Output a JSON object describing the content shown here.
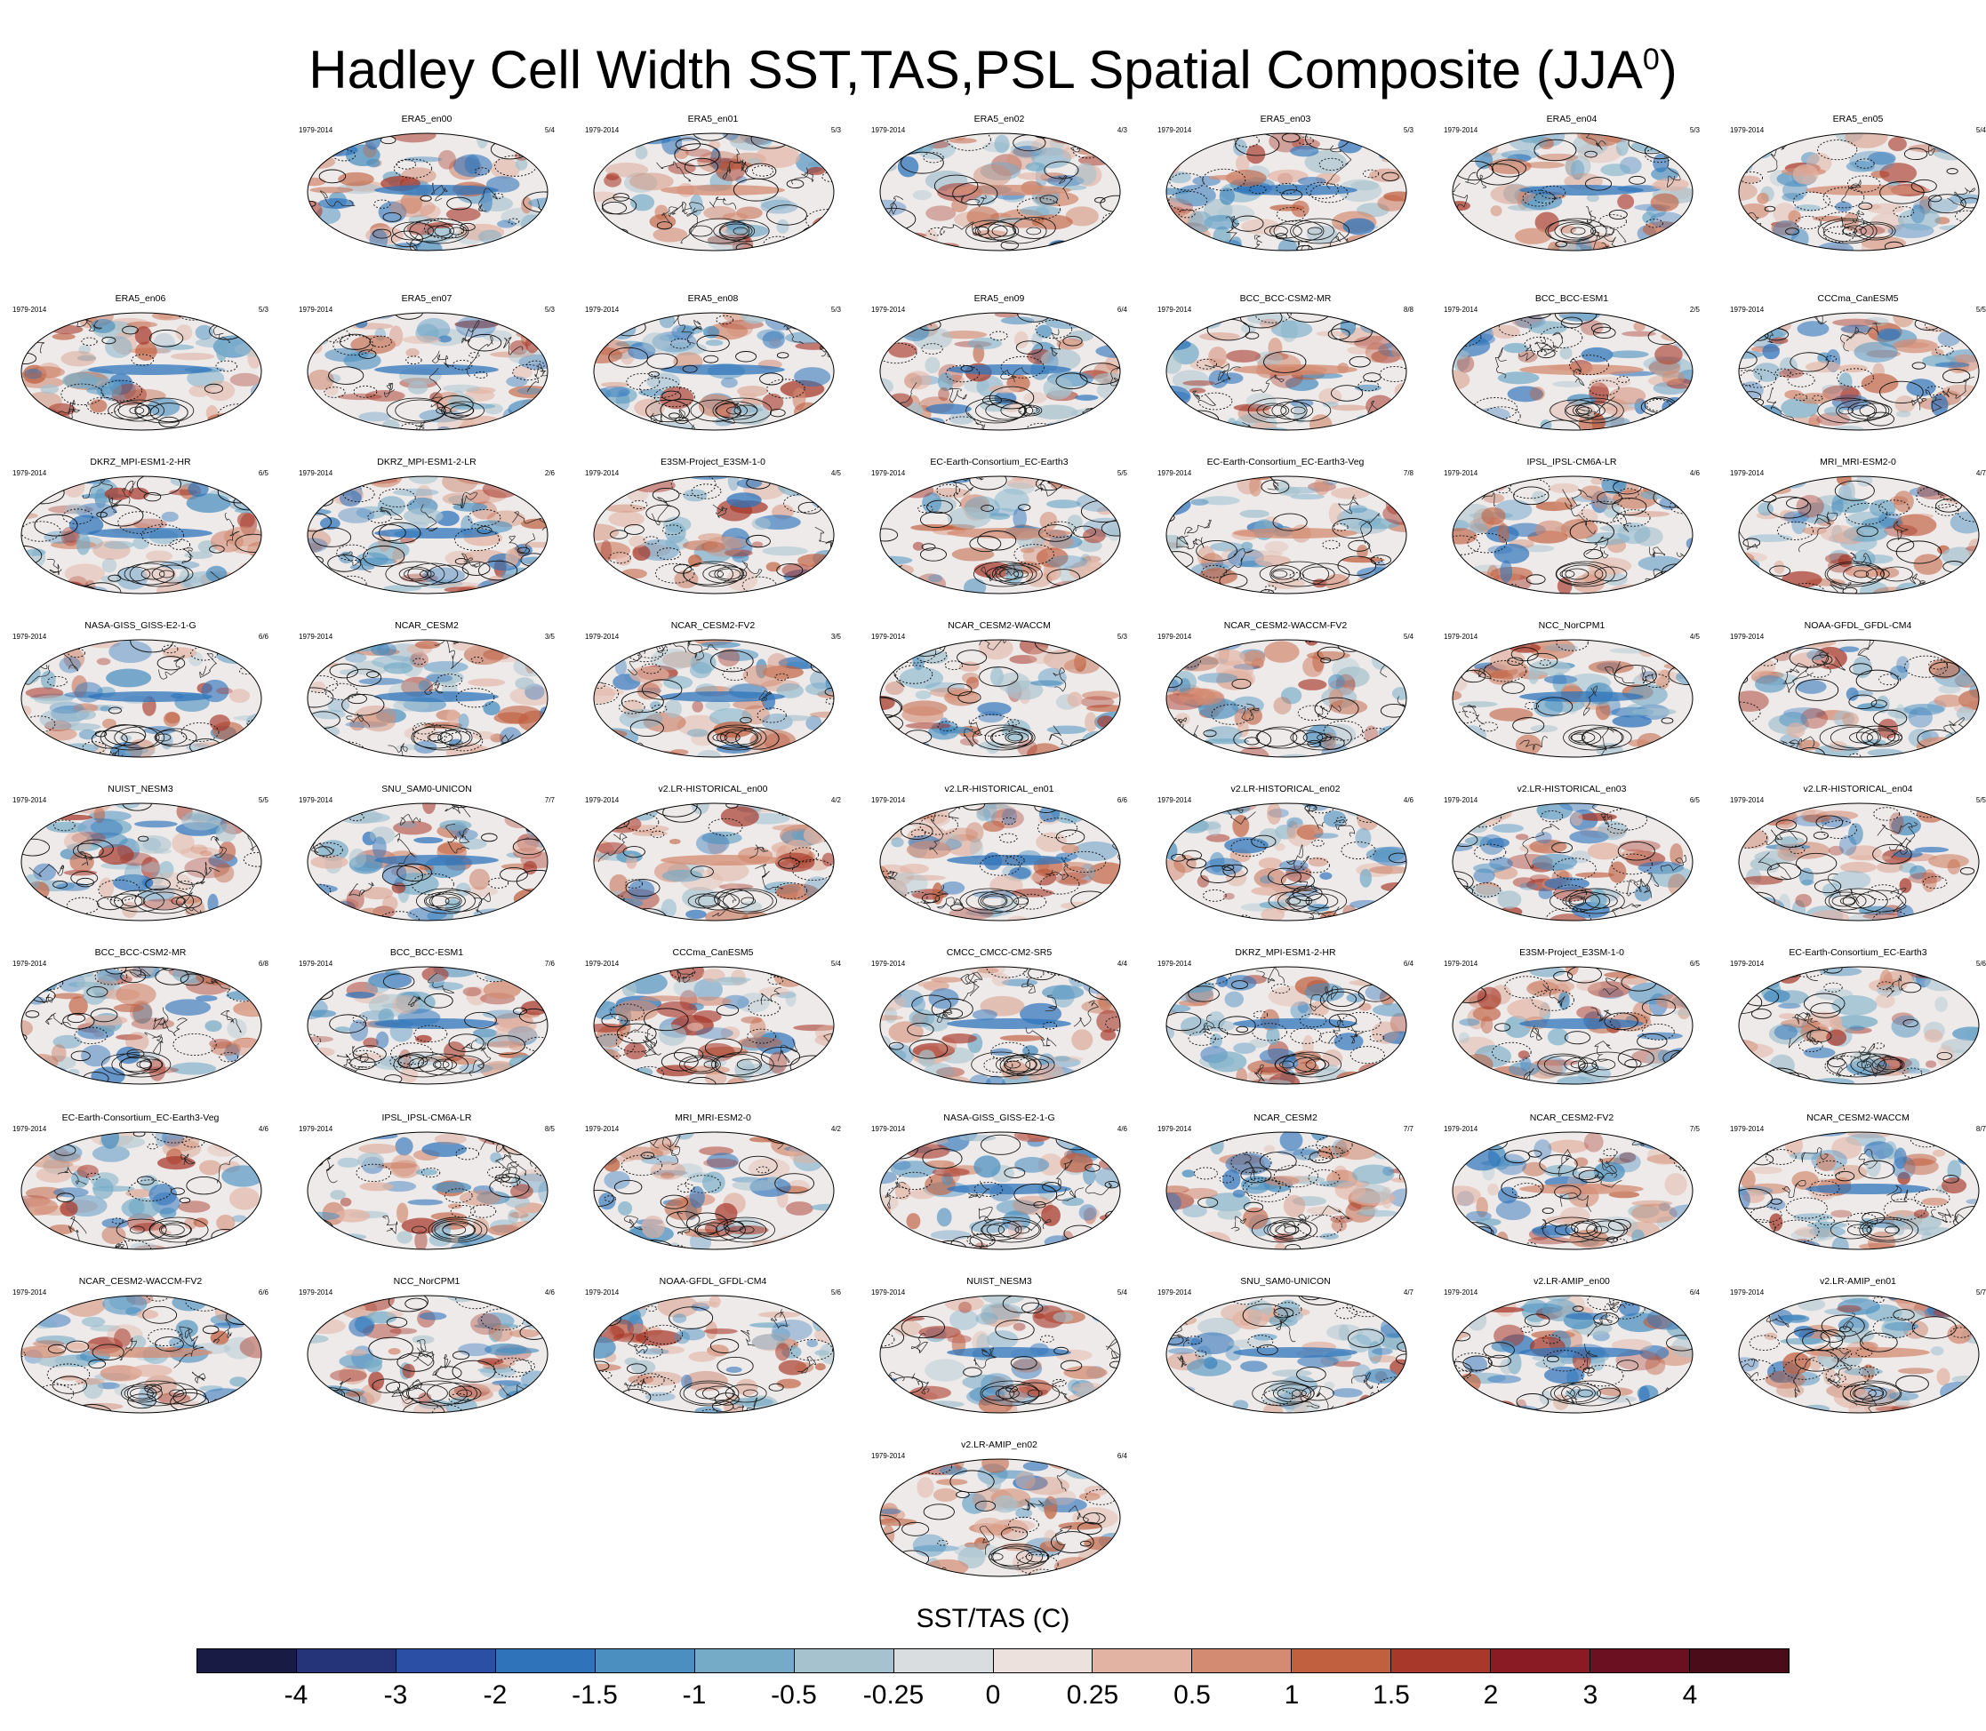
{
  "title": "Hadley Cell Width SST,TAS,PSL Spatial Composite (JJA",
  "title_superscript": "0",
  "colorbar": {
    "label": "SST/TAS (C)",
    "ticks": [
      "-4",
      "-3",
      "-2",
      "-1.5",
      "-1",
      "-0.5",
      "-0.25",
      "0",
      "0.25",
      "0.5",
      "1",
      "1.5",
      "2",
      "3",
      "4"
    ],
    "colors": [
      "#181c45",
      "#253479",
      "#2b4fa5",
      "#2f74bb",
      "#4a8fc0",
      "#75abc7",
      "#a6c2ce",
      "#d9dde0",
      "#ece1dd",
      "#e2b3a3",
      "#d38b72",
      "#c0603f",
      "#a7382a",
      "#8a1a23",
      "#6a1020",
      "#4a0c18"
    ]
  },
  "panels": [
    {
      "name": "ERA5_en00",
      "period": "1979-2014",
      "frac": "5/4"
    },
    {
      "name": "ERA5_en01",
      "period": "1979-2014",
      "frac": "5/3"
    },
    {
      "name": "ERA5_en02",
      "period": "1979-2014",
      "frac": "4/3"
    },
    {
      "name": "ERA5_en03",
      "period": "1979-2014",
      "frac": "5/3"
    },
    {
      "name": "ERA5_en04",
      "period": "1979-2014",
      "frac": "5/3"
    },
    {
      "name": "ERA5_en05",
      "period": "1979-2014",
      "frac": "5/4"
    },
    {
      "name": "ERA5_en06",
      "period": "1979-2014",
      "frac": "5/3"
    },
    {
      "name": "ERA5_en07",
      "period": "1979-2014",
      "frac": "5/3"
    },
    {
      "name": "ERA5_en08",
      "period": "1979-2014",
      "frac": "5/3"
    },
    {
      "name": "ERA5_en09",
      "period": "1979-2014",
      "frac": "6/4"
    },
    {
      "name": "BCC_BCC-CSM2-MR",
      "period": "1979-2014",
      "frac": "8/8"
    },
    {
      "name": "BCC_BCC-ESM1",
      "period": "1979-2014",
      "frac": "2/5"
    },
    {
      "name": "CCCma_CanESM5",
      "period": "1979-2014",
      "frac": "5/5"
    },
    {
      "name": "DKRZ_MPI-ESM1-2-HR",
      "period": "1979-2014",
      "frac": "6/5"
    },
    {
      "name": "DKRZ_MPI-ESM1-2-LR",
      "period": "1979-2014",
      "frac": "2/6"
    },
    {
      "name": "E3SM-Project_E3SM-1-0",
      "period": "1979-2014",
      "frac": "4/5"
    },
    {
      "name": "EC-Earth-Consortium_EC-Earth3",
      "period": "1979-2014",
      "frac": "5/5"
    },
    {
      "name": "EC-Earth-Consortium_EC-Earth3-Veg",
      "period": "1979-2014",
      "frac": "7/8"
    },
    {
      "name": "IPSL_IPSL-CM6A-LR",
      "period": "1979-2014",
      "frac": "4/6"
    },
    {
      "name": "MRI_MRI-ESM2-0",
      "period": "1979-2014",
      "frac": "4/7"
    },
    {
      "name": "NASA-GISS_GISS-E2-1-G",
      "period": "1979-2014",
      "frac": "6/6"
    },
    {
      "name": "NCAR_CESM2",
      "period": "1979-2014",
      "frac": "3/5"
    },
    {
      "name": "NCAR_CESM2-FV2",
      "period": "1979-2014",
      "frac": "3/5"
    },
    {
      "name": "NCAR_CESM2-WACCM",
      "period": "1979-2014",
      "frac": "5/3"
    },
    {
      "name": "NCAR_CESM2-WACCM-FV2",
      "period": "1979-2014",
      "frac": "5/4"
    },
    {
      "name": "NCC_NorCPM1",
      "period": "1979-2014",
      "frac": "4/5"
    },
    {
      "name": "NOAA-GFDL_GFDL-CM4",
      "period": "1979-2014",
      "frac": ""
    },
    {
      "name": "NUIST_NESM3",
      "period": "1979-2014",
      "frac": "5/5"
    },
    {
      "name": "SNU_SAM0-UNICON",
      "period": "1979-2014",
      "frac": "7/7"
    },
    {
      "name": "v2.LR-HISTORICAL_en00",
      "period": "1979-2014",
      "frac": "4/2"
    },
    {
      "name": "v2.LR-HISTORICAL_en01",
      "period": "1979-2014",
      "frac": "6/6"
    },
    {
      "name": "v2.LR-HISTORICAL_en02",
      "period": "1979-2014",
      "frac": "4/6"
    },
    {
      "name": "v2.LR-HISTORICAL_en03",
      "period": "1979-2014",
      "frac": "6/5"
    },
    {
      "name": "v2.LR-HISTORICAL_en04",
      "period": "1979-2014",
      "frac": "5/5"
    },
    {
      "name": "BCC_BCC-CSM2-MR",
      "period": "1979-2014",
      "frac": "6/8"
    },
    {
      "name": "BCC_BCC-ESM1",
      "period": "1979-2014",
      "frac": "7/6"
    },
    {
      "name": "CCCma_CanESM5",
      "period": "1979-2014",
      "frac": "5/4"
    },
    {
      "name": "CMCC_CMCC-CM2-SR5",
      "period": "1979-2014",
      "frac": "4/4"
    },
    {
      "name": "DKRZ_MPI-ESM1-2-HR",
      "period": "1979-2014",
      "frac": "6/4"
    },
    {
      "name": "E3SM-Project_E3SM-1-0",
      "period": "1979-2014",
      "frac": "6/5"
    },
    {
      "name": "EC-Earth-Consortium_EC-Earth3",
      "period": "1979-2014",
      "frac": "5/6"
    },
    {
      "name": "EC-Earth-Consortium_EC-Earth3-Veg",
      "period": "1979-2014",
      "frac": "4/6"
    },
    {
      "name": "IPSL_IPSL-CM6A-LR",
      "period": "1979-2014",
      "frac": "8/5"
    },
    {
      "name": "MRI_MRI-ESM2-0",
      "period": "1979-2014",
      "frac": "4/2"
    },
    {
      "name": "NASA-GISS_GISS-E2-1-G",
      "period": "1979-2014",
      "frac": "4/6"
    },
    {
      "name": "NCAR_CESM2",
      "period": "1979-2014",
      "frac": "7/7"
    },
    {
      "name": "NCAR_CESM2-FV2",
      "period": "1979-2014",
      "frac": "7/5"
    },
    {
      "name": "NCAR_CESM2-WACCM",
      "period": "1979-2014",
      "frac": "8/7"
    },
    {
      "name": "NCAR_CESM2-WACCM-FV2",
      "period": "1979-2014",
      "frac": "6/6"
    },
    {
      "name": "NCC_NorCPM1",
      "period": "1979-2014",
      "frac": "4/6"
    },
    {
      "name": "NOAA-GFDL_GFDL-CM4",
      "period": "1979-2014",
      "frac": "5/6"
    },
    {
      "name": "NUIST_NESM3",
      "period": "1979-2014",
      "frac": "5/4"
    },
    {
      "name": "SNU_SAM0-UNICON",
      "period": "1979-2014",
      "frac": "4/7"
    },
    {
      "name": "v2.LR-AMIP_en00",
      "period": "1979-2014",
      "frac": "6/4"
    },
    {
      "name": "v2.LR-AMIP_en01",
      "period": "1979-2014",
      "frac": "5/7"
    },
    {
      "name": "v2.LR-AMIP_en02",
      "period": "1979-2014",
      "frac": "6/4"
    }
  ]
}
